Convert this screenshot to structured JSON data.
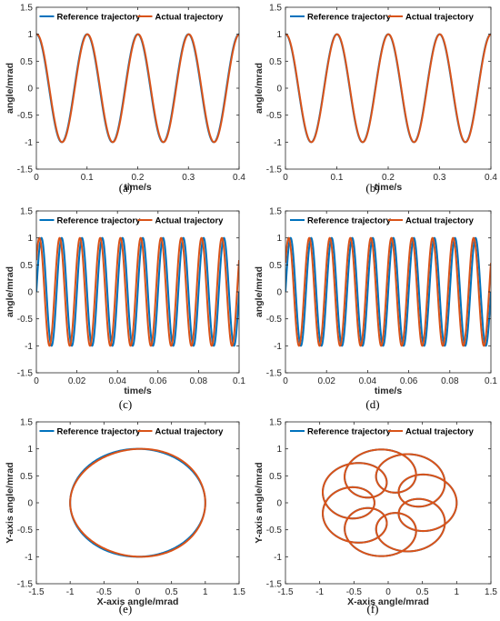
{
  "colors": {
    "reference": "#0072BD",
    "actual": "#D95319"
  },
  "chart_data": [
    {
      "type": "line",
      "caption": "(a)",
      "xlabel": "time/s",
      "ylabel": "angle/mrad",
      "xlim": [
        0,
        0.4
      ],
      "ylim": [
        -1.5,
        1.5
      ],
      "xticks": [
        0,
        0.1,
        0.2,
        0.3,
        0.4
      ],
      "xticklabels": [
        "0",
        "0.1",
        "0.2",
        "0.3",
        "0.4"
      ],
      "yticks": [
        -1.5,
        -1,
        -0.5,
        0,
        0.5,
        1,
        1.5
      ],
      "yticklabels": [
        "-1.5",
        "-1",
        "-0.5",
        "0",
        "0.5",
        "1",
        "1.5"
      ],
      "legend": "top",
      "series": [
        {
          "name": "Reference trajectory",
          "function": "cos",
          "frequency_hz": 10,
          "amplitude": 1,
          "lag_s": 0
        },
        {
          "name": "Actual trajectory",
          "function": "cos",
          "frequency_hz": 10,
          "amplitude": 1,
          "lag_s": 0.0008
        }
      ]
    },
    {
      "type": "line",
      "caption": "(b)",
      "xlabel": "time/s",
      "ylabel": "angle/mrad",
      "xlim": [
        0,
        0.4
      ],
      "ylim": [
        -1.5,
        1.5
      ],
      "xticks": [
        0,
        0.1,
        0.2,
        0.3,
        0.4
      ],
      "xticklabels": [
        "0",
        "0.1",
        "0.2",
        "0.3",
        "0.4"
      ],
      "yticks": [
        -1.5,
        -1,
        -0.5,
        0,
        0.5,
        1,
        1.5
      ],
      "yticklabels": [
        "-1.5",
        "-1",
        "-0.5",
        "0",
        "0.5",
        "1",
        "1.5"
      ],
      "legend": "top",
      "series": [
        {
          "name": "Reference trajectory",
          "function": "cos",
          "frequency_hz": 10,
          "amplitude": 1,
          "lag_s": 0
        },
        {
          "name": "Actual trajectory",
          "function": "cos",
          "frequency_hz": 10,
          "amplitude": 1,
          "lag_s": 0.0005
        }
      ]
    },
    {
      "type": "line",
      "caption": "(c)",
      "xlabel": "time/s",
      "ylabel": "angle/mrad",
      "xlim": [
        0,
        0.1
      ],
      "ylim": [
        -1.5,
        1.5
      ],
      "xticks": [
        0,
        0.02,
        0.04,
        0.06,
        0.08,
        0.1
      ],
      "xticklabels": [
        "0",
        "0.02",
        "0.04",
        "0.06",
        "0.08",
        "0.1"
      ],
      "yticks": [
        -1.5,
        -1,
        -0.5,
        0,
        0.5,
        1,
        1.5
      ],
      "yticklabels": [
        "-1.5",
        "-1",
        "-0.5",
        "0",
        "0.5",
        "1",
        "1.5"
      ],
      "legend": "top",
      "series": [
        {
          "name": "Reference trajectory",
          "function": "sin",
          "frequency_hz": 100,
          "amplitude": 1,
          "lag_s": 0
        },
        {
          "name": "Actual trajectory",
          "function": "sin",
          "frequency_hz": 100,
          "amplitude": 1,
          "lag_s": -0.001
        }
      ]
    },
    {
      "type": "line",
      "caption": "(d)",
      "xlabel": "time/s",
      "ylabel": "angle/mrad",
      "xlim": [
        0,
        0.1
      ],
      "ylim": [
        -1.5,
        1.5
      ],
      "xticks": [
        0,
        0.02,
        0.04,
        0.06,
        0.08,
        0.1
      ],
      "xticklabels": [
        "0",
        "0.02",
        "0.04",
        "0.06",
        "0.08",
        "0.1"
      ],
      "yticks": [
        -1.5,
        -1,
        -0.5,
        0,
        0.5,
        1,
        1.5
      ],
      "yticklabels": [
        "-1.5",
        "-1",
        "-0.5",
        "0",
        "0.5",
        "1",
        "1.5"
      ],
      "legend": "top",
      "series": [
        {
          "name": "Reference trajectory",
          "function": "sin",
          "frequency_hz": 100,
          "amplitude": 1,
          "lag_s": 0
        },
        {
          "name": "Actual trajectory",
          "function": "sin",
          "frequency_hz": 100,
          "amplitude": 1,
          "lag_s": -0.0009
        }
      ]
    },
    {
      "type": "line",
      "caption": "(e)",
      "xlabel": "X-axis angle/mrad",
      "ylabel": "Y-axis angle/mrad",
      "xlim": [
        -1.5,
        1.5
      ],
      "ylim": [
        -1.5,
        1.5
      ],
      "xticks": [
        -1.5,
        -1,
        -0.5,
        0,
        0.5,
        1,
        1.5
      ],
      "xticklabels": [
        "-1.5",
        "-1",
        "-0.5",
        "0",
        "0.5",
        "1",
        "1.5"
      ],
      "yticks": [
        -1.5,
        -1,
        -0.5,
        0,
        0.5,
        1,
        1.5
      ],
      "yticklabels": [
        "-1.5",
        "-1",
        "-0.5",
        "0",
        "0.5",
        "1",
        "1.5"
      ],
      "legend": "top",
      "series": [
        {
          "name": "Reference trajectory",
          "curve": "circle",
          "radius": 1,
          "phase_shift": 0
        },
        {
          "name": "Actual trajectory",
          "curve": "circle",
          "radius": 1,
          "phase_shift": 0.05
        }
      ]
    },
    {
      "type": "line",
      "caption": "(f)",
      "xlabel": "X-axis angle/mrad",
      "ylabel": "Y-axis angle/mrad",
      "xlim": [
        -1.5,
        1.5
      ],
      "ylim": [
        -1.5,
        1.5
      ],
      "xticks": [
        -1.5,
        -1,
        -0.5,
        0,
        0.5,
        1,
        1.5
      ],
      "xticklabels": [
        "-1.5",
        "-1",
        "-0.5",
        "0",
        "0.5",
        "1",
        "1.5"
      ],
      "yticks": [
        -1.5,
        -1,
        -0.5,
        0,
        0.5,
        1,
        1.5
      ],
      "yticklabels": [
        "-1.5",
        "-1",
        "-0.5",
        "0",
        "0.5",
        "1",
        "1.5"
      ],
      "legend": "top",
      "series": [
        {
          "name": "Reference trajectory",
          "curve": "epitrochoid",
          "R": 0.6,
          "r": 0.4,
          "lobes": 8,
          "phase_shift": 0
        },
        {
          "name": "Actual trajectory",
          "curve": "epitrochoid",
          "R": 0.6,
          "r": 0.4,
          "lobes": 8,
          "phase_shift": 0.002
        }
      ]
    }
  ]
}
